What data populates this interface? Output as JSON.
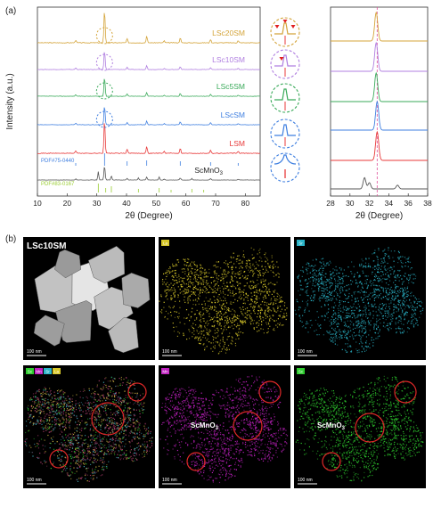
{
  "panel_a": {
    "label": "(a)",
    "ylabel": "Intensity (a.u.)",
    "xlabel_main": "2θ (Degree)",
    "xlabel_zoom": "2θ (Degree)",
    "x_ticks_main": [
      "10",
      "20",
      "30",
      "40",
      "50",
      "60",
      "70",
      "80"
    ],
    "x_ticks_zoom": [
      "28",
      "30",
      "32",
      "34",
      "36",
      "38"
    ],
    "series": [
      {
        "name": "LSc20SM",
        "color": "#d4a43a"
      },
      {
        "name": "LSc10SM",
        "color": "#b07fe0"
      },
      {
        "name": "LSc5SM",
        "color": "#3aaa5a"
      },
      {
        "name": "LScSM",
        "color": "#3f7fe0"
      },
      {
        "name": "LSM",
        "color": "#e83a3a"
      },
      {
        "name": "ScMnO3",
        "color": "#555555"
      }
    ],
    "pdf_refs": [
      {
        "text": "PDF#75-0440",
        "color": "#3f7fe0"
      },
      {
        "text": "PDF#83-0167",
        "color": "#9acd32"
      }
    ],
    "scmno3_label": {
      "base": "ScMnO",
      "sub": "3"
    }
  },
  "chart_data": [
    {
      "type": "line",
      "xlabel": "2θ (Degree)",
      "ylabel": "Intensity (a.u.)",
      "xlim": [
        10,
        85
      ],
      "series_names": [
        "LSc20SM",
        "LSc10SM",
        "LSc5SM",
        "LScSM",
        "LSM",
        "ScMnO3"
      ],
      "main_peaks_2theta": [
        22.9,
        32.6,
        40.2,
        46.8,
        52.7,
        58.1,
        68.3,
        77.6
      ],
      "grid": false
    },
    {
      "type": "line",
      "xlabel": "2θ (Degree)",
      "xlim": [
        28,
        38
      ],
      "series_names": [
        "LSc20SM",
        "LSc10SM",
        "LSc5SM",
        "LScSM",
        "LSM",
        "ScMnO3"
      ],
      "reference_line_2theta": 32.8,
      "grid": false
    }
  ],
  "panel_b": {
    "label": "(b)",
    "tiles": [
      {
        "id": "haadf",
        "title": "LSc10SM",
        "scale": "100 nm"
      },
      {
        "id": "la",
        "badge": "La",
        "scale": "100 nm"
      },
      {
        "id": "sr",
        "badge": "Sr",
        "scale": "100 nm"
      },
      {
        "id": "overlay",
        "badges": [
          "Sc",
          "Mn",
          "Sr",
          "La"
        ],
        "scale": "100 nm"
      },
      {
        "id": "mn",
        "badge": "Mn",
        "annotation": "ScMnO",
        "annotation_sub": "3",
        "scale": "100 nm"
      },
      {
        "id": "sc",
        "badge": "Sc",
        "annotation": "ScMnO",
        "annotation_sub": "3",
        "scale": "100 nm"
      }
    ],
    "colors": {
      "la": "#d8c82a",
      "sr": "#2ab4c8",
      "mn": "#c020c0",
      "sc": "#2ecc2e",
      "circle": "#e02828"
    }
  }
}
